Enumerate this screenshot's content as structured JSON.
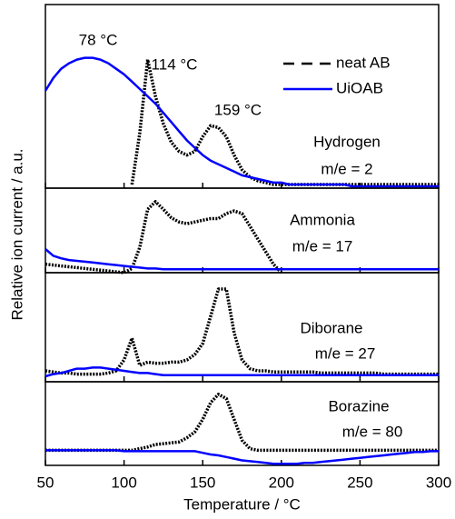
{
  "chart_data": {
    "type": "line",
    "xlabel": "Temperature / °C",
    "ylabel": "Relative ion current / a.u.",
    "xlim": [
      50,
      300
    ],
    "xticks": [
      50,
      100,
      150,
      200,
      250,
      300
    ],
    "x": [
      50,
      55,
      60,
      65,
      70,
      75,
      80,
      85,
      90,
      95,
      100,
      105,
      110,
      115,
      120,
      125,
      130,
      135,
      140,
      145,
      150,
      155,
      160,
      165,
      170,
      175,
      180,
      185,
      190,
      195,
      200,
      205,
      210,
      215,
      220,
      225,
      230,
      235,
      240,
      245,
      250,
      255,
      260,
      265,
      270,
      275,
      280,
      285,
      290,
      295,
      300
    ],
    "series": [
      {
        "name": "neat AB",
        "color": "#000000",
        "dash": true
      },
      {
        "name": "UiOAB",
        "color": "#0000ff",
        "dash": false
      }
    ],
    "panels": [
      {
        "title": "Hydrogen",
        "subtitle": "m/e = 2",
        "ylim": [
          0,
          1
        ],
        "annotations": [
          "78 °C",
          "114 °C",
          "159 °C"
        ],
        "values": [
          [
            null,
            null,
            null,
            null,
            null,
            null,
            null,
            null,
            null,
            null,
            null,
            0.02,
            0.3,
            0.7,
            0.5,
            0.35,
            0.25,
            0.2,
            0.18,
            0.2,
            0.28,
            0.34,
            0.33,
            0.28,
            0.18,
            0.1,
            0.06,
            0.04,
            0.03,
            0.02,
            0.02,
            0.02,
            0.02,
            0.02,
            0.02,
            0.02,
            0.02,
            0.02,
            0.02,
            0.02,
            0.02,
            0.02,
            0.02,
            0.02,
            0.02,
            0.02,
            0.02,
            0.02,
            0.02,
            0.02,
            0.02
          ],
          [
            0.53,
            0.6,
            0.65,
            0.68,
            0.7,
            0.71,
            0.71,
            0.7,
            0.68,
            0.65,
            0.62,
            0.58,
            0.54,
            0.5,
            0.46,
            0.41,
            0.36,
            0.31,
            0.26,
            0.22,
            0.18,
            0.15,
            0.13,
            0.11,
            0.09,
            0.07,
            0.06,
            0.05,
            0.04,
            0.03,
            0.03,
            0.02,
            0.02,
            0.02,
            0.02,
            0.02,
            0.02,
            0.02,
            0.02,
            0.01,
            0.01,
            0.01,
            0.01,
            0.01,
            0.01,
            0.01,
            0.01,
            0.01,
            0.01,
            0.01,
            0.01
          ]
        ]
      },
      {
        "title": "Ammonia",
        "subtitle": "m/e = 17",
        "ylim": [
          0,
          1
        ],
        "values": [
          [
            0.1,
            0.09,
            0.08,
            0.07,
            0.06,
            0.05,
            0.04,
            0.03,
            0.02,
            0.01,
            0,
            0.05,
            0.3,
            0.75,
            0.84,
            0.75,
            0.65,
            0.6,
            0.58,
            0.6,
            0.62,
            0.64,
            0.64,
            0.7,
            0.73,
            0.7,
            0.55,
            0.4,
            0.25,
            0.1,
            0,
            null,
            null,
            null,
            null,
            null,
            null,
            null,
            null,
            null,
            null,
            null,
            null,
            null,
            null,
            null,
            null,
            null,
            null,
            null,
            null
          ],
          [
            0.28,
            0.2,
            0.17,
            0.15,
            0.14,
            0.13,
            0.12,
            0.11,
            0.1,
            0.09,
            0.08,
            0.07,
            0.06,
            0.05,
            0.05,
            0.04,
            0.04,
            0.04,
            0.04,
            0.04,
            0.04,
            0.04,
            0.04,
            0.04,
            0.04,
            0.04,
            0.04,
            0.04,
            0.04,
            0.04,
            0.04,
            0.04,
            0.04,
            0.04,
            0.04,
            0.04,
            0.04,
            0.04,
            0.04,
            0.04,
            0.04,
            0.04,
            0.04,
            0.04,
            0.04,
            0.04,
            0.04,
            0.04,
            0.04,
            0.04,
            0.04
          ]
        ]
      },
      {
        "title": "Diborane",
        "subtitle": "m/e = 27",
        "ylim": [
          0,
          1
        ],
        "values": [
          [
            0.1,
            0.09,
            0.08,
            0.08,
            0.07,
            0.07,
            0.07,
            0.07,
            0.08,
            0.1,
            0.2,
            0.4,
            0.15,
            0.18,
            0.17,
            0.17,
            0.18,
            0.18,
            0.2,
            0.25,
            0.35,
            0.6,
            0.85,
            0.85,
            0.45,
            0.2,
            0.12,
            0.1,
            0.1,
            0.09,
            0.09,
            0.09,
            0.09,
            0.09,
            0.09,
            0.08,
            0.08,
            0.08,
            0.08,
            0.08,
            0.08,
            0.08,
            0.08,
            0.07,
            0.07,
            0.07,
            0.07,
            0.07,
            0.07,
            0.07,
            0.07
          ],
          [
            0.05,
            0.07,
            0.08,
            0.1,
            0.12,
            0.12,
            0.13,
            0.13,
            0.12,
            0.11,
            0.1,
            0.09,
            0.08,
            0.08,
            0.07,
            0.06,
            0.06,
            0.06,
            0.06,
            0.06,
            0.06,
            0.06,
            0.06,
            0.06,
            0.06,
            0.06,
            0.06,
            0.06,
            0.06,
            0.06,
            0.06,
            0.06,
            0.06,
            0.06,
            0.06,
            0.06,
            0.06,
            0.06,
            0.06,
            0.06,
            0.06,
            0.06,
            0.06,
            0.06,
            0.06,
            0.06,
            0.06,
            0.06,
            0.06,
            0.06,
            0.06
          ]
        ]
      },
      {
        "title": "Borazine",
        "subtitle": "m/e = 80",
        "ylim": [
          0,
          1
        ],
        "values": [
          [
            0.18,
            0.18,
            0.18,
            0.18,
            0.18,
            0.18,
            0.18,
            0.18,
            0.18,
            0.18,
            0.18,
            0.18,
            0.2,
            0.22,
            0.25,
            0.26,
            0.27,
            0.28,
            0.33,
            0.4,
            0.55,
            0.75,
            0.85,
            0.8,
            0.55,
            0.3,
            0.2,
            0.18,
            0.18,
            0.18,
            0.18,
            0.18,
            0.18,
            0.18,
            0.18,
            0.18,
            0.18,
            0.18,
            0.18,
            0.18,
            0.18,
            0.18,
            0.18,
            0.18,
            0.18,
            0.18,
            0.18,
            0.18,
            0.18,
            0.18,
            0.18
          ],
          [
            0.18,
            0.18,
            0.18,
            0.18,
            0.18,
            0.18,
            0.18,
            0.18,
            0.18,
            0.18,
            0.17,
            0.17,
            0.17,
            0.17,
            0.17,
            0.17,
            0.17,
            0.17,
            0.17,
            0.17,
            0.15,
            0.13,
            0.12,
            0.1,
            0.08,
            0.06,
            0.05,
            0.04,
            0.03,
            0.02,
            0.02,
            0.02,
            0.02,
            0.03,
            0.03,
            0.04,
            0.05,
            0.06,
            0.07,
            0.08,
            0.09,
            0.1,
            0.11,
            0.12,
            0.13,
            0.14,
            0.15,
            0.16,
            0.16,
            0.17,
            0.17
          ]
        ]
      }
    ]
  }
}
